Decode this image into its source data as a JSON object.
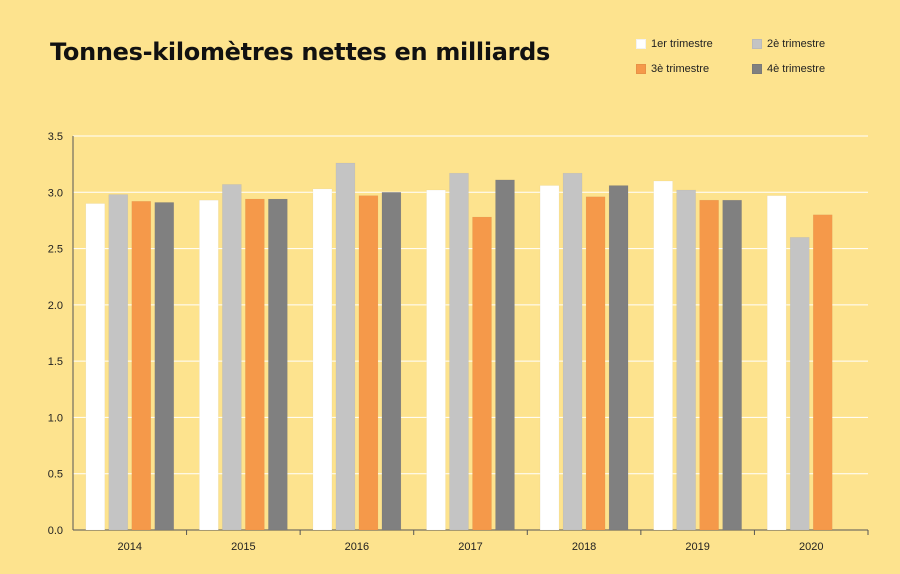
{
  "title": "Tonnes-kilomètres nettes en milliards",
  "chart_data": {
    "type": "bar",
    "title": "Tonnes-kilomètres nettes en milliards",
    "xlabel": "",
    "ylabel": "",
    "categories": [
      "2014",
      "2015",
      "2016",
      "2017",
      "2018",
      "2019",
      "2020"
    ],
    "ylim": [
      0,
      3.5
    ],
    "yticks": [
      "0.0",
      "0.5",
      "1.0",
      "1.5",
      "2.0",
      "2.5",
      "3.0",
      "3.5"
    ],
    "grid": true,
    "legend_position": "top-right",
    "series": [
      {
        "name": "1er trimestre",
        "color": "#ffffff",
        "values": [
          2.9,
          2.93,
          3.03,
          3.02,
          3.06,
          3.1,
          2.97
        ]
      },
      {
        "name": "2è trimestre",
        "color": "#c4c4c4",
        "values": [
          2.98,
          3.07,
          3.26,
          3.17,
          3.17,
          3.02,
          2.6
        ]
      },
      {
        "name": "3è trimestre",
        "color": "#f5994a",
        "values": [
          2.92,
          2.94,
          2.97,
          2.78,
          2.96,
          2.93,
          2.8
        ]
      },
      {
        "name": "4è trimestre",
        "color": "#808080",
        "values": [
          2.91,
          2.94,
          3.0,
          3.11,
          3.06,
          2.93,
          null
        ]
      }
    ]
  }
}
